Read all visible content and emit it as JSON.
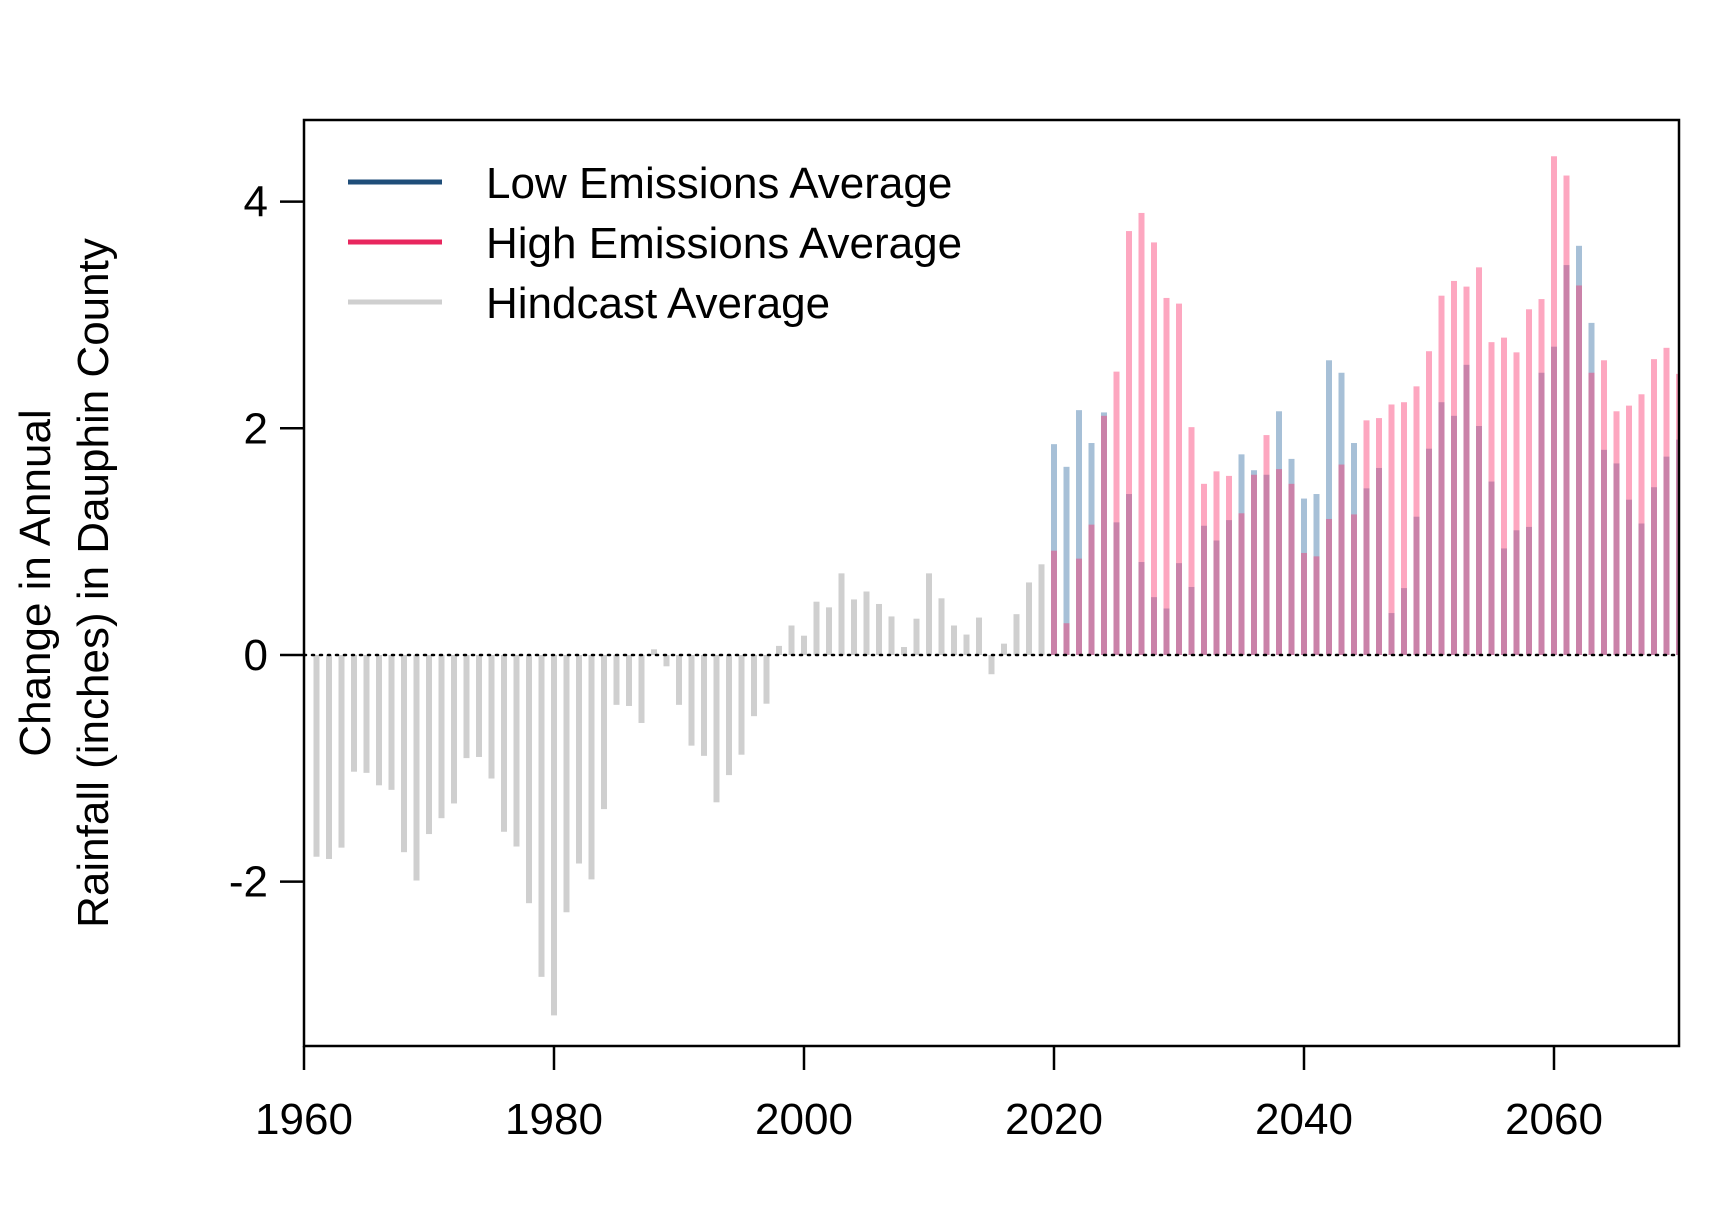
{
  "chart_data": {
    "type": "bar",
    "title": "",
    "xlabel": "",
    "ylabel_lines": [
      "Change in Annual",
      "Rainfall (inches) in Dauphin County"
    ],
    "xlim": [
      1960,
      2070
    ],
    "ylim": [
      -3.45,
      4.72
    ],
    "x_ticks": [
      1960,
      1980,
      2000,
      2020,
      2040,
      2060
    ],
    "y_ticks": [
      -2,
      0,
      2,
      4
    ],
    "y_tick_labels": [
      "-2",
      "0",
      "2",
      "4"
    ],
    "reference_line": 0,
    "legend_position": "top-left",
    "legend": [
      {
        "label": "Low Emissions Average",
        "color": "#1f4e79"
      },
      {
        "label": "High Emissions Average",
        "color": "#e8265e"
      },
      {
        "label": "Hindcast Average",
        "color": "#cfcfcf"
      }
    ],
    "series": [
      {
        "name": "Hindcast Average",
        "color": "#cfcfcf",
        "x": [
          1961,
          1962,
          1963,
          1964,
          1965,
          1966,
          1967,
          1968,
          1969,
          1970,
          1971,
          1972,
          1973,
          1974,
          1975,
          1976,
          1977,
          1978,
          1979,
          1980,
          1981,
          1982,
          1983,
          1984,
          1985,
          1986,
          1987,
          1988,
          1989,
          1990,
          1991,
          1992,
          1993,
          1994,
          1995,
          1996,
          1997,
          1998,
          1999,
          2000,
          2001,
          2002,
          2003,
          2004,
          2005,
          2006,
          2007,
          2008,
          2009,
          2010,
          2011,
          2012,
          2013,
          2014,
          2015,
          2016,
          2017,
          2018,
          2019
        ],
        "values": [
          -1.78,
          -1.8,
          -1.7,
          -1.03,
          -1.04,
          -1.15,
          -1.19,
          -1.74,
          -1.99,
          -1.58,
          -1.44,
          -1.31,
          -0.91,
          -0.9,
          -1.09,
          -1.56,
          -1.69,
          -2.19,
          -2.84,
          -3.18,
          -2.27,
          -1.84,
          -1.98,
          -1.36,
          -0.44,
          -0.45,
          -0.6,
          0.05,
          -0.1,
          -0.44,
          -0.8,
          -0.89,
          -1.3,
          -1.06,
          -0.88,
          -0.54,
          -0.43,
          0.08,
          0.26,
          0.17,
          0.47,
          0.42,
          0.72,
          0.49,
          0.56,
          0.45,
          0.34,
          0.07,
          0.32,
          0.72,
          0.5,
          0.26,
          0.18,
          0.33,
          -0.17,
          0.1,
          0.36,
          0.64,
          0.8
        ]
      },
      {
        "name": "Low Emissions Average",
        "color": "#1f4e79",
        "x": [
          2020,
          2021,
          2022,
          2023,
          2024,
          2025,
          2026,
          2027,
          2028,
          2029,
          2030,
          2031,
          2032,
          2033,
          2034,
          2035,
          2036,
          2037,
          2038,
          2039,
          2040,
          2041,
          2042,
          2043,
          2044,
          2045,
          2046,
          2047,
          2048,
          2049,
          2050,
          2051,
          2052,
          2053,
          2054,
          2055,
          2056,
          2057,
          2058,
          2059,
          2060,
          2061,
          2062,
          2063,
          2064,
          2065,
          2066,
          2067,
          2068,
          2069,
          2070
        ],
        "values": [
          1.86,
          1.66,
          2.16,
          1.87,
          2.14,
          1.17,
          1.42,
          0.82,
          0.51,
          0.41,
          0.81,
          0.6,
          1.14,
          1.01,
          1.19,
          1.77,
          1.63,
          1.59,
          2.15,
          1.73,
          1.38,
          1.42,
          2.6,
          2.49,
          1.87,
          1.47,
          1.65,
          0.37,
          0.59,
          1.22,
          1.82,
          2.23,
          2.11,
          2.56,
          2.02,
          1.53,
          0.94,
          1.1,
          1.13,
          2.49,
          2.72,
          3.44,
          3.61,
          2.93,
          1.81,
          1.69,
          1.37,
          1.16,
          1.48,
          1.75,
          1.9
        ]
      },
      {
        "name": "High Emissions Average",
        "color": "#e8265e",
        "x": [
          2020,
          2021,
          2022,
          2023,
          2024,
          2025,
          2026,
          2027,
          2028,
          2029,
          2030,
          2031,
          2032,
          2033,
          2034,
          2035,
          2036,
          2037,
          2038,
          2039,
          2040,
          2041,
          2042,
          2043,
          2044,
          2045,
          2046,
          2047,
          2048,
          2049,
          2050,
          2051,
          2052,
          2053,
          2054,
          2055,
          2056,
          2057,
          2058,
          2059,
          2060,
          2061,
          2062,
          2063,
          2064,
          2065,
          2066,
          2067,
          2068,
          2069,
          2070
        ],
        "values": [
          0.92,
          0.28,
          0.85,
          1.15,
          2.11,
          2.5,
          3.74,
          3.9,
          3.64,
          3.15,
          3.1,
          2.01,
          1.51,
          1.62,
          1.58,
          1.25,
          1.59,
          1.94,
          1.64,
          1.51,
          0.9,
          0.87,
          1.2,
          1.68,
          1.24,
          2.07,
          2.09,
          2.21,
          2.23,
          2.37,
          2.68,
          3.17,
          3.3,
          3.25,
          3.42,
          2.76,
          2.8,
          2.67,
          3.05,
          3.14,
          4.4,
          4.23,
          3.26,
          2.49,
          2.6,
          2.15,
          2.2,
          2.3,
          2.61,
          2.71,
          2.48
        ]
      }
    ]
  }
}
